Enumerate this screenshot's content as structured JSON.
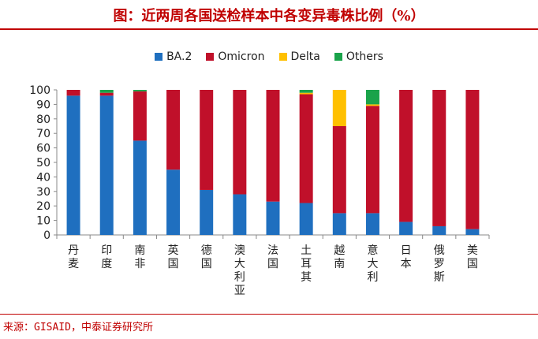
{
  "header": {
    "title": "图：近两周各国送检样本中各变异毒株比例（%）"
  },
  "footer": {
    "source": "来源：GISAID，中泰证券研究所"
  },
  "colors": {
    "BA.2": "#1f6fbf",
    "Omicron": "#c0102a",
    "Delta": "#ffc000",
    "Others": "#1aa34a",
    "accent": "#c00000"
  },
  "chart_data": {
    "type": "bar",
    "stacked": true,
    "categories": [
      "丹麦",
      "印度",
      "南非",
      "英国",
      "德国",
      "澳大利亚",
      "法国",
      "土耳其",
      "越南",
      "意大利",
      "日本",
      "俄罗斯",
      "美国"
    ],
    "series": [
      {
        "name": "BA.2",
        "values": [
          96,
          96,
          65,
          45,
          31,
          28,
          23,
          22,
          15,
          15,
          9,
          6,
          4
        ]
      },
      {
        "name": "Omicron",
        "values": [
          4,
          2,
          34,
          55,
          69,
          72,
          77,
          75,
          60,
          74,
          91,
          94,
          96
        ]
      },
      {
        "name": "Delta",
        "values": [
          0,
          0,
          0,
          0,
          0,
          0,
          0,
          1,
          25,
          1,
          0,
          0,
          0
        ]
      },
      {
        "name": "Others",
        "values": [
          0,
          2,
          1,
          0,
          0,
          0,
          0,
          2,
          0,
          10,
          0,
          0,
          0
        ]
      }
    ],
    "ylim": [
      0,
      100
    ],
    "yticks": [
      0,
      10,
      20,
      30,
      40,
      50,
      60,
      70,
      80,
      90,
      100
    ],
    "legend_position": "top",
    "grid": false
  }
}
